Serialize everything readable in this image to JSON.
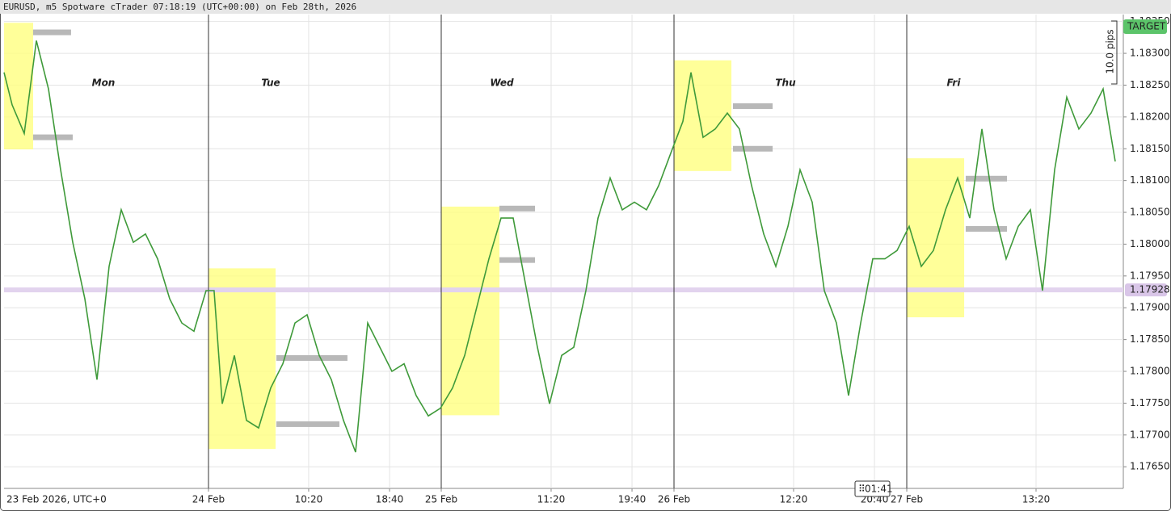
{
  "chart_data": {
    "type": "line",
    "title": "EURUSD, m5 Spotware cTrader 07:18:19 (UTC+00:00) on Feb 28th, 2026",
    "x_start_label": "23 Feb 2026, UTC+0",
    "xlim": [
      2.92,
      118.33
    ],
    "xticks": [
      {
        "value": 24,
        "label": "24 Feb"
      },
      {
        "value": 34.33,
        "label": "10:20"
      },
      {
        "value": 42.67,
        "label": "18:40"
      },
      {
        "value": 48,
        "label": "25 Feb"
      },
      {
        "value": 59.33,
        "label": "11:20"
      },
      {
        "value": 67.67,
        "label": "19:40"
      },
      {
        "value": 72,
        "label": "26 Feb"
      },
      {
        "value": 84.33,
        "label": "12:20"
      },
      {
        "value": 92.67,
        "label": "20:40"
      },
      {
        "value": 96,
        "label": "27 Feb"
      },
      {
        "value": 109.33,
        "label": "13:20"
      }
    ],
    "day_separators": [
      24,
      48,
      72,
      96
    ],
    "day_labels": [
      "Mon",
      "Tue",
      "Wed",
      "Thu",
      "Fri"
    ],
    "ylim": [
      1.17616,
      1.18361
    ],
    "yticks": [
      {
        "value": 1.1765,
        "label": "1.17650"
      },
      {
        "value": 1.177,
        "label": "1.17700"
      },
      {
        "value": 1.1775,
        "label": "1.17750"
      },
      {
        "value": 1.178,
        "label": "1.17800"
      },
      {
        "value": 1.1785,
        "label": "1.17850"
      },
      {
        "value": 1.179,
        "label": "1.17900"
      },
      {
        "value": 1.1795,
        "label": "1.17950"
      },
      {
        "value": 1.18,
        "label": "1.18000"
      },
      {
        "value": 1.1805,
        "label": "1.18050"
      },
      {
        "value": 1.181,
        "label": "1.18100"
      },
      {
        "value": 1.1815,
        "label": "1.18150"
      },
      {
        "value": 1.182,
        "label": "1.18200"
      },
      {
        "value": 1.1825,
        "label": "1.18250"
      },
      {
        "value": 1.183,
        "label": "1.18300"
      },
      {
        "value": 1.1835,
        "label": "1.18350"
      }
    ],
    "grid": true,
    "current_price": 1.17928,
    "target": {
      "label": "TARGET",
      "price": 1.18342
    },
    "measure_label": "10.0 pips",
    "countdown": "01:41",
    "highlight_boxes": [
      {
        "x": [
          2.92,
          5.92
        ],
        "y": [
          1.18149,
          1.18348
        ]
      },
      {
        "x": [
          24,
          30.92
        ],
        "y": [
          1.17678,
          1.17962
        ]
      },
      {
        "x": [
          48,
          54
        ],
        "y": [
          1.17731,
          1.18059
        ]
      },
      {
        "x": [
          72,
          77.92
        ],
        "y": [
          1.18115,
          1.18289
        ]
      },
      {
        "x": [
          96,
          101.92
        ],
        "y": [
          1.17885,
          1.18135
        ]
      }
    ],
    "levels": [
      {
        "x": [
          5.92,
          9.83
        ],
        "price": 1.18333
      },
      {
        "x": [
          5.92,
          10
        ],
        "price": 1.18168
      },
      {
        "x": [
          31,
          38.33
        ],
        "price": 1.17821
      },
      {
        "x": [
          31,
          37.5
        ],
        "price": 1.17717
      },
      {
        "x": [
          54,
          57.67
        ],
        "price": 1.18056
      },
      {
        "x": [
          54,
          57.67
        ],
        "price": 1.17975
      },
      {
        "x": [
          78.08,
          82.17
        ],
        "price": 1.18217
      },
      {
        "x": [
          78.08,
          82.17
        ],
        "price": 1.1815
      },
      {
        "x": [
          102.08,
          106.33
        ],
        "price": 1.18103
      },
      {
        "x": [
          102.08,
          106.33
        ],
        "price": 1.18024
      }
    ],
    "x": [
      2.92,
      3.75,
      5,
      6.25,
      7.5,
      8.75,
      10,
      11.25,
      12.5,
      13.75,
      15,
      16.25,
      17.5,
      18.75,
      20,
      21.25,
      22.5,
      23.75,
      24.58,
      25.42,
      26.67,
      27.92,
      29.17,
      30.42,
      31.67,
      32.92,
      34.17,
      35.42,
      36.67,
      37.92,
      39.17,
      40.42,
      41.67,
      42.92,
      44.17,
      45.42,
      46.67,
      47.92,
      49.17,
      50.42,
      51.67,
      52.92,
      54.17,
      55.42,
      56.67,
      57.92,
      59.17,
      60.42,
      61.67,
      62.92,
      64.17,
      65.42,
      66.67,
      67.92,
      69.17,
      70.42,
      71.67,
      72.92,
      73.75,
      75,
      76.25,
      77.5,
      78.75,
      80,
      81.25,
      82.5,
      83.75,
      85,
      86.25,
      87.5,
      88.75,
      90,
      91.25,
      92.5,
      93.75,
      95,
      96.25,
      97.5,
      98.75,
      100,
      101.25,
      102.5,
      103.75,
      105,
      106.25,
      107.5,
      108.75,
      110,
      111.25,
      112.5,
      113.75,
      115,
      116.25,
      117.5
    ],
    "series": [
      {
        "name": "EURUSD",
        "color": "#3f9a3a",
        "values": [
          1.1827,
          1.18219,
          1.18174,
          1.1832,
          1.18244,
          1.18117,
          1.18003,
          1.17914,
          1.17787,
          1.17965,
          1.18054,
          1.18003,
          1.18016,
          1.17977,
          1.17914,
          1.17876,
          1.17863,
          1.17927,
          1.17927,
          1.17749,
          1.17825,
          1.17723,
          1.17711,
          1.17774,
          1.17812,
          1.17876,
          1.17889,
          1.17825,
          1.17787,
          1.17723,
          1.17673,
          1.17876,
          1.17838,
          1.178,
          1.17812,
          1.17762,
          1.1773,
          1.17742,
          1.17774,
          1.17825,
          1.17901,
          1.17977,
          1.18041,
          1.18041,
          1.17939,
          1.17838,
          1.17749,
          1.17825,
          1.17838,
          1.17927,
          1.18041,
          1.18104,
          1.18054,
          1.18066,
          1.18054,
          1.18092,
          1.18143,
          1.18193,
          1.1827,
          1.18168,
          1.18181,
          1.18206,
          1.18181,
          1.18092,
          1.18016,
          1.17965,
          1.18028,
          1.18117,
          1.18066,
          1.17927,
          1.17876,
          1.17762,
          1.17876,
          1.17977,
          1.17977,
          1.1799,
          1.18028,
          1.17965,
          1.1799,
          1.18054,
          1.18104,
          1.18041,
          1.18181,
          1.18054,
          1.17977,
          1.18028,
          1.18054,
          1.17927,
          1.18117,
          1.18231,
          1.18181,
          1.18206,
          1.18244,
          1.1813
        ]
      }
    ]
  }
}
